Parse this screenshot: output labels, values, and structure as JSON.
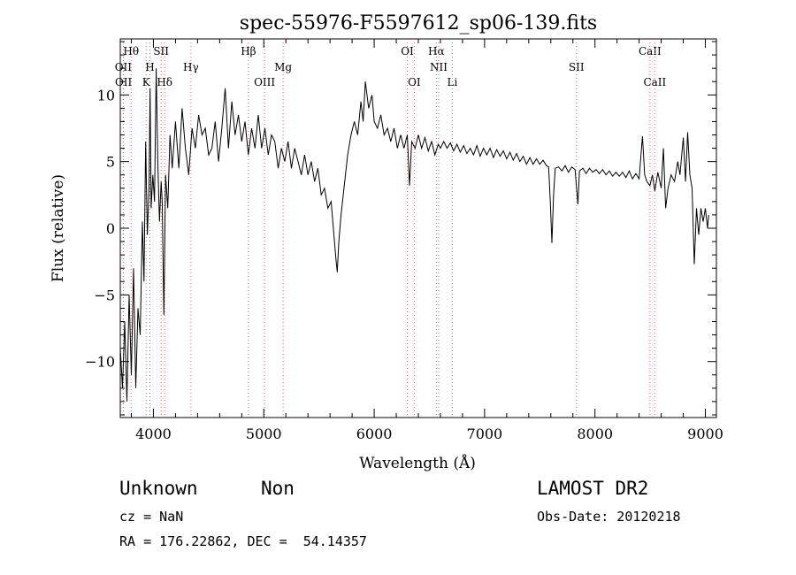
{
  "chart_data": {
    "type": "line",
    "title": "spec-55976-F5597612_sp06-139.fits",
    "xlabel": "Wavelength (Å)",
    "ylabel": "Flux (relative)",
    "xlim": [
      3700,
      9100
    ],
    "ylim": [
      -14.2,
      14.2
    ],
    "xticks": [
      4000,
      5000,
      6000,
      7000,
      8000,
      9000
    ],
    "yticks": [
      -10,
      -5,
      0,
      5,
      10
    ],
    "grid": false,
    "line_color": "#000000",
    "marker_line_color": "#e06060",
    "series": [
      {
        "points": [
          [
            3700,
            -9
          ],
          [
            3720,
            -12
          ],
          [
            3740,
            -7
          ],
          [
            3760,
            -13
          ],
          [
            3780,
            -5
          ],
          [
            3800,
            -11
          ],
          [
            3820,
            -3
          ],
          [
            3840,
            -12
          ],
          [
            3860,
            -6
          ],
          [
            3880,
            -8
          ],
          [
            3900,
            0.5
          ],
          [
            3915,
            -4
          ],
          [
            3930,
            6.5
          ],
          [
            3945,
            -0.5
          ],
          [
            3960,
            3
          ],
          [
            3970,
            10.5
          ],
          [
            3980,
            1.5
          ],
          [
            3995,
            4
          ],
          [
            4010,
            2
          ],
          [
            4025,
            12
          ],
          [
            4040,
            5
          ],
          [
            4055,
            0.5
          ],
          [
            4070,
            3.5
          ],
          [
            4080,
            2
          ],
          [
            4095,
            -6.5
          ],
          [
            4110,
            4
          ],
          [
            4130,
            1.5
          ],
          [
            4150,
            7
          ],
          [
            4170,
            4.5
          ],
          [
            4200,
            8
          ],
          [
            4230,
            4.5
          ],
          [
            4260,
            9
          ],
          [
            4290,
            6
          ],
          [
            4320,
            4
          ],
          [
            4350,
            7.5
          ],
          [
            4380,
            6
          ],
          [
            4410,
            8.5
          ],
          [
            4440,
            7
          ],
          [
            4470,
            7.5
          ],
          [
            4500,
            5.5
          ],
          [
            4530,
            6
          ],
          [
            4560,
            8
          ],
          [
            4590,
            5
          ],
          [
            4620,
            7.5
          ],
          [
            4650,
            10.5
          ],
          [
            4680,
            6
          ],
          [
            4710,
            9.5
          ],
          [
            4740,
            7
          ],
          [
            4770,
            8.5
          ],
          [
            4800,
            6.5
          ],
          [
            4830,
            8
          ],
          [
            4860,
            5.5
          ],
          [
            4890,
            7.5
          ],
          [
            4920,
            6
          ],
          [
            4950,
            8.5
          ],
          [
            4980,
            6
          ],
          [
            5010,
            7.5
          ],
          [
            5040,
            5.5
          ],
          [
            5070,
            7
          ],
          [
            5100,
            6.5
          ],
          [
            5130,
            4.5
          ],
          [
            5160,
            6
          ],
          [
            5190,
            5
          ],
          [
            5220,
            6.5
          ],
          [
            5250,
            4.5
          ],
          [
            5280,
            6
          ],
          [
            5310,
            5
          ],
          [
            5340,
            4
          ],
          [
            5370,
            5.5
          ],
          [
            5400,
            4
          ],
          [
            5430,
            5
          ],
          [
            5460,
            3.5
          ],
          [
            5490,
            4.5
          ],
          [
            5520,
            2.5
          ],
          [
            5550,
            3
          ],
          [
            5580,
            1.5
          ],
          [
            5610,
            2
          ],
          [
            5630,
            0
          ],
          [
            5650,
            -2
          ],
          [
            5665,
            -3.3
          ],
          [
            5680,
            -1
          ],
          [
            5700,
            1
          ],
          [
            5720,
            2.5
          ],
          [
            5740,
            4
          ],
          [
            5760,
            5.5
          ],
          [
            5790,
            7
          ],
          [
            5820,
            8
          ],
          [
            5850,
            7
          ],
          [
            5880,
            9.5
          ],
          [
            5900,
            8
          ],
          [
            5920,
            11
          ],
          [
            5950,
            9
          ],
          [
            5980,
            10
          ],
          [
            6000,
            8
          ],
          [
            6030,
            7.5
          ],
          [
            6060,
            8.5
          ],
          [
            6090,
            7
          ],
          [
            6120,
            7.5
          ],
          [
            6150,
            6.5
          ],
          [
            6180,
            7.5
          ],
          [
            6210,
            6
          ],
          [
            6240,
            7
          ],
          [
            6270,
            6
          ],
          [
            6300,
            7
          ],
          [
            6320,
            3.2
          ],
          [
            6340,
            6.5
          ],
          [
            6370,
            6
          ],
          [
            6400,
            7
          ],
          [
            6430,
            6
          ],
          [
            6460,
            6.8
          ],
          [
            6490,
            5.8
          ],
          [
            6520,
            6.5
          ],
          [
            6550,
            5.5
          ],
          [
            6580,
            6.3
          ],
          [
            6600,
            6
          ],
          [
            6630,
            6.5
          ],
          [
            6660,
            6
          ],
          [
            6690,
            6.4
          ],
          [
            6720,
            5.8
          ],
          [
            6750,
            6.3
          ],
          [
            6780,
            5.7
          ],
          [
            6810,
            6.2
          ],
          [
            6840,
            5.6
          ],
          [
            6870,
            6
          ],
          [
            6900,
            5.5
          ],
          [
            6930,
            6.2
          ],
          [
            6960,
            5.4
          ],
          [
            6990,
            6
          ],
          [
            7020,
            5.5
          ],
          [
            7050,
            6
          ],
          [
            7080,
            5.3
          ],
          [
            7110,
            5.9
          ],
          [
            7140,
            5.4
          ],
          [
            7170,
            5.8
          ],
          [
            7200,
            5.2
          ],
          [
            7230,
            5.7
          ],
          [
            7260,
            5.1
          ],
          [
            7290,
            5.6
          ],
          [
            7320,
            5
          ],
          [
            7350,
            5.4
          ],
          [
            7380,
            4.8
          ],
          [
            7410,
            5.3
          ],
          [
            7440,
            4.8
          ],
          [
            7470,
            5.2
          ],
          [
            7500,
            4.8
          ],
          [
            7530,
            5.1
          ],
          [
            7560,
            4.7
          ],
          [
            7580,
            4.6
          ],
          [
            7595,
            2
          ],
          [
            7610,
            -1.1
          ],
          [
            7625,
            2.5
          ],
          [
            7640,
            4.5
          ],
          [
            7670,
            4.6
          ],
          [
            7700,
            4.3
          ],
          [
            7730,
            4.7
          ],
          [
            7760,
            4.2
          ],
          [
            7790,
            4.6
          ],
          [
            7820,
            4.4
          ],
          [
            7845,
            1.8
          ],
          [
            7860,
            4.3
          ],
          [
            7890,
            4.5
          ],
          [
            7920,
            4.1
          ],
          [
            7950,
            4.5
          ],
          [
            7980,
            4.2
          ],
          [
            8010,
            4.4
          ],
          [
            8040,
            4.1
          ],
          [
            8070,
            4.4
          ],
          [
            8100,
            4
          ],
          [
            8130,
            4.3
          ],
          [
            8160,
            3.9
          ],
          [
            8190,
            4.2
          ],
          [
            8220,
            3.9
          ],
          [
            8250,
            4.2
          ],
          [
            8280,
            3.8
          ],
          [
            8310,
            4.3
          ],
          [
            8340,
            3.7
          ],
          [
            8370,
            4.1
          ],
          [
            8400,
            3.7
          ],
          [
            8430,
            6.9
          ],
          [
            8450,
            4
          ],
          [
            8470,
            3.5
          ],
          [
            8498,
            3.2
          ],
          [
            8520,
            4
          ],
          [
            8542,
            2.8
          ],
          [
            8570,
            4.2
          ],
          [
            8600,
            3
          ],
          [
            8620,
            6
          ],
          [
            8640,
            1.5
          ],
          [
            8662,
            3
          ],
          [
            8690,
            4
          ],
          [
            8720,
            3.5
          ],
          [
            8750,
            5
          ],
          [
            8770,
            4
          ],
          [
            8800,
            6.8
          ],
          [
            8820,
            3.5
          ],
          [
            8840,
            7.2
          ],
          [
            8860,
            4
          ],
          [
            8880,
            3
          ],
          [
            8900,
            -2.7
          ],
          [
            8920,
            1.5
          ],
          [
            8940,
            -0.5
          ],
          [
            8960,
            1.5
          ],
          [
            8980,
            0.5
          ],
          [
            9000,
            1.5
          ],
          [
            9020,
            0
          ],
          [
            9030,
            1
          ]
        ]
      }
    ],
    "line_markers": [
      {
        "label": "Hθ",
        "x": 3798,
        "row": 0
      },
      {
        "label": "SII",
        "x": 4070,
        "row": 0
      },
      {
        "label": "Hβ",
        "x": 4861,
        "row": 0
      },
      {
        "label": "OI",
        "x": 6300,
        "row": 0
      },
      {
        "label": "Hα",
        "x": 6563,
        "row": 0
      },
      {
        "label": "CaII",
        "x": 8498,
        "row": 0
      },
      {
        "label": "OII",
        "x": 3727,
        "row": 1
      },
      {
        "label": "H",
        "x": 3968,
        "row": 1
      },
      {
        "label": "Hγ",
        "x": 4340,
        "row": 1
      },
      {
        "label": "Mg",
        "x": 5175,
        "row": 1
      },
      {
        "label": "NII",
        "x": 6584,
        "row": 1
      },
      {
        "label": "SII",
        "x": 7832,
        "row": 1
      },
      {
        "label": "OII",
        "x": 3729,
        "row": 2
      },
      {
        "label": "K",
        "x": 3934,
        "row": 2
      },
      {
        "label": "Hδ",
        "x": 4102,
        "row": 2
      },
      {
        "label": "OIII",
        "x": 5007,
        "row": 2
      },
      {
        "label": "OI",
        "x": 6363,
        "row": 2
      },
      {
        "label": "Li",
        "x": 6708,
        "row": 2
      },
      {
        "label": "CaII",
        "x": 8542,
        "row": 2
      }
    ]
  },
  "footer": {
    "object_class": "Unknown",
    "subclass": "Non",
    "cz": "cz = NaN",
    "coords": "RA = 176.22862, DEC =  54.14357",
    "survey": "LAMOST DR2",
    "obs_date": "Obs-Date: 20120218"
  }
}
